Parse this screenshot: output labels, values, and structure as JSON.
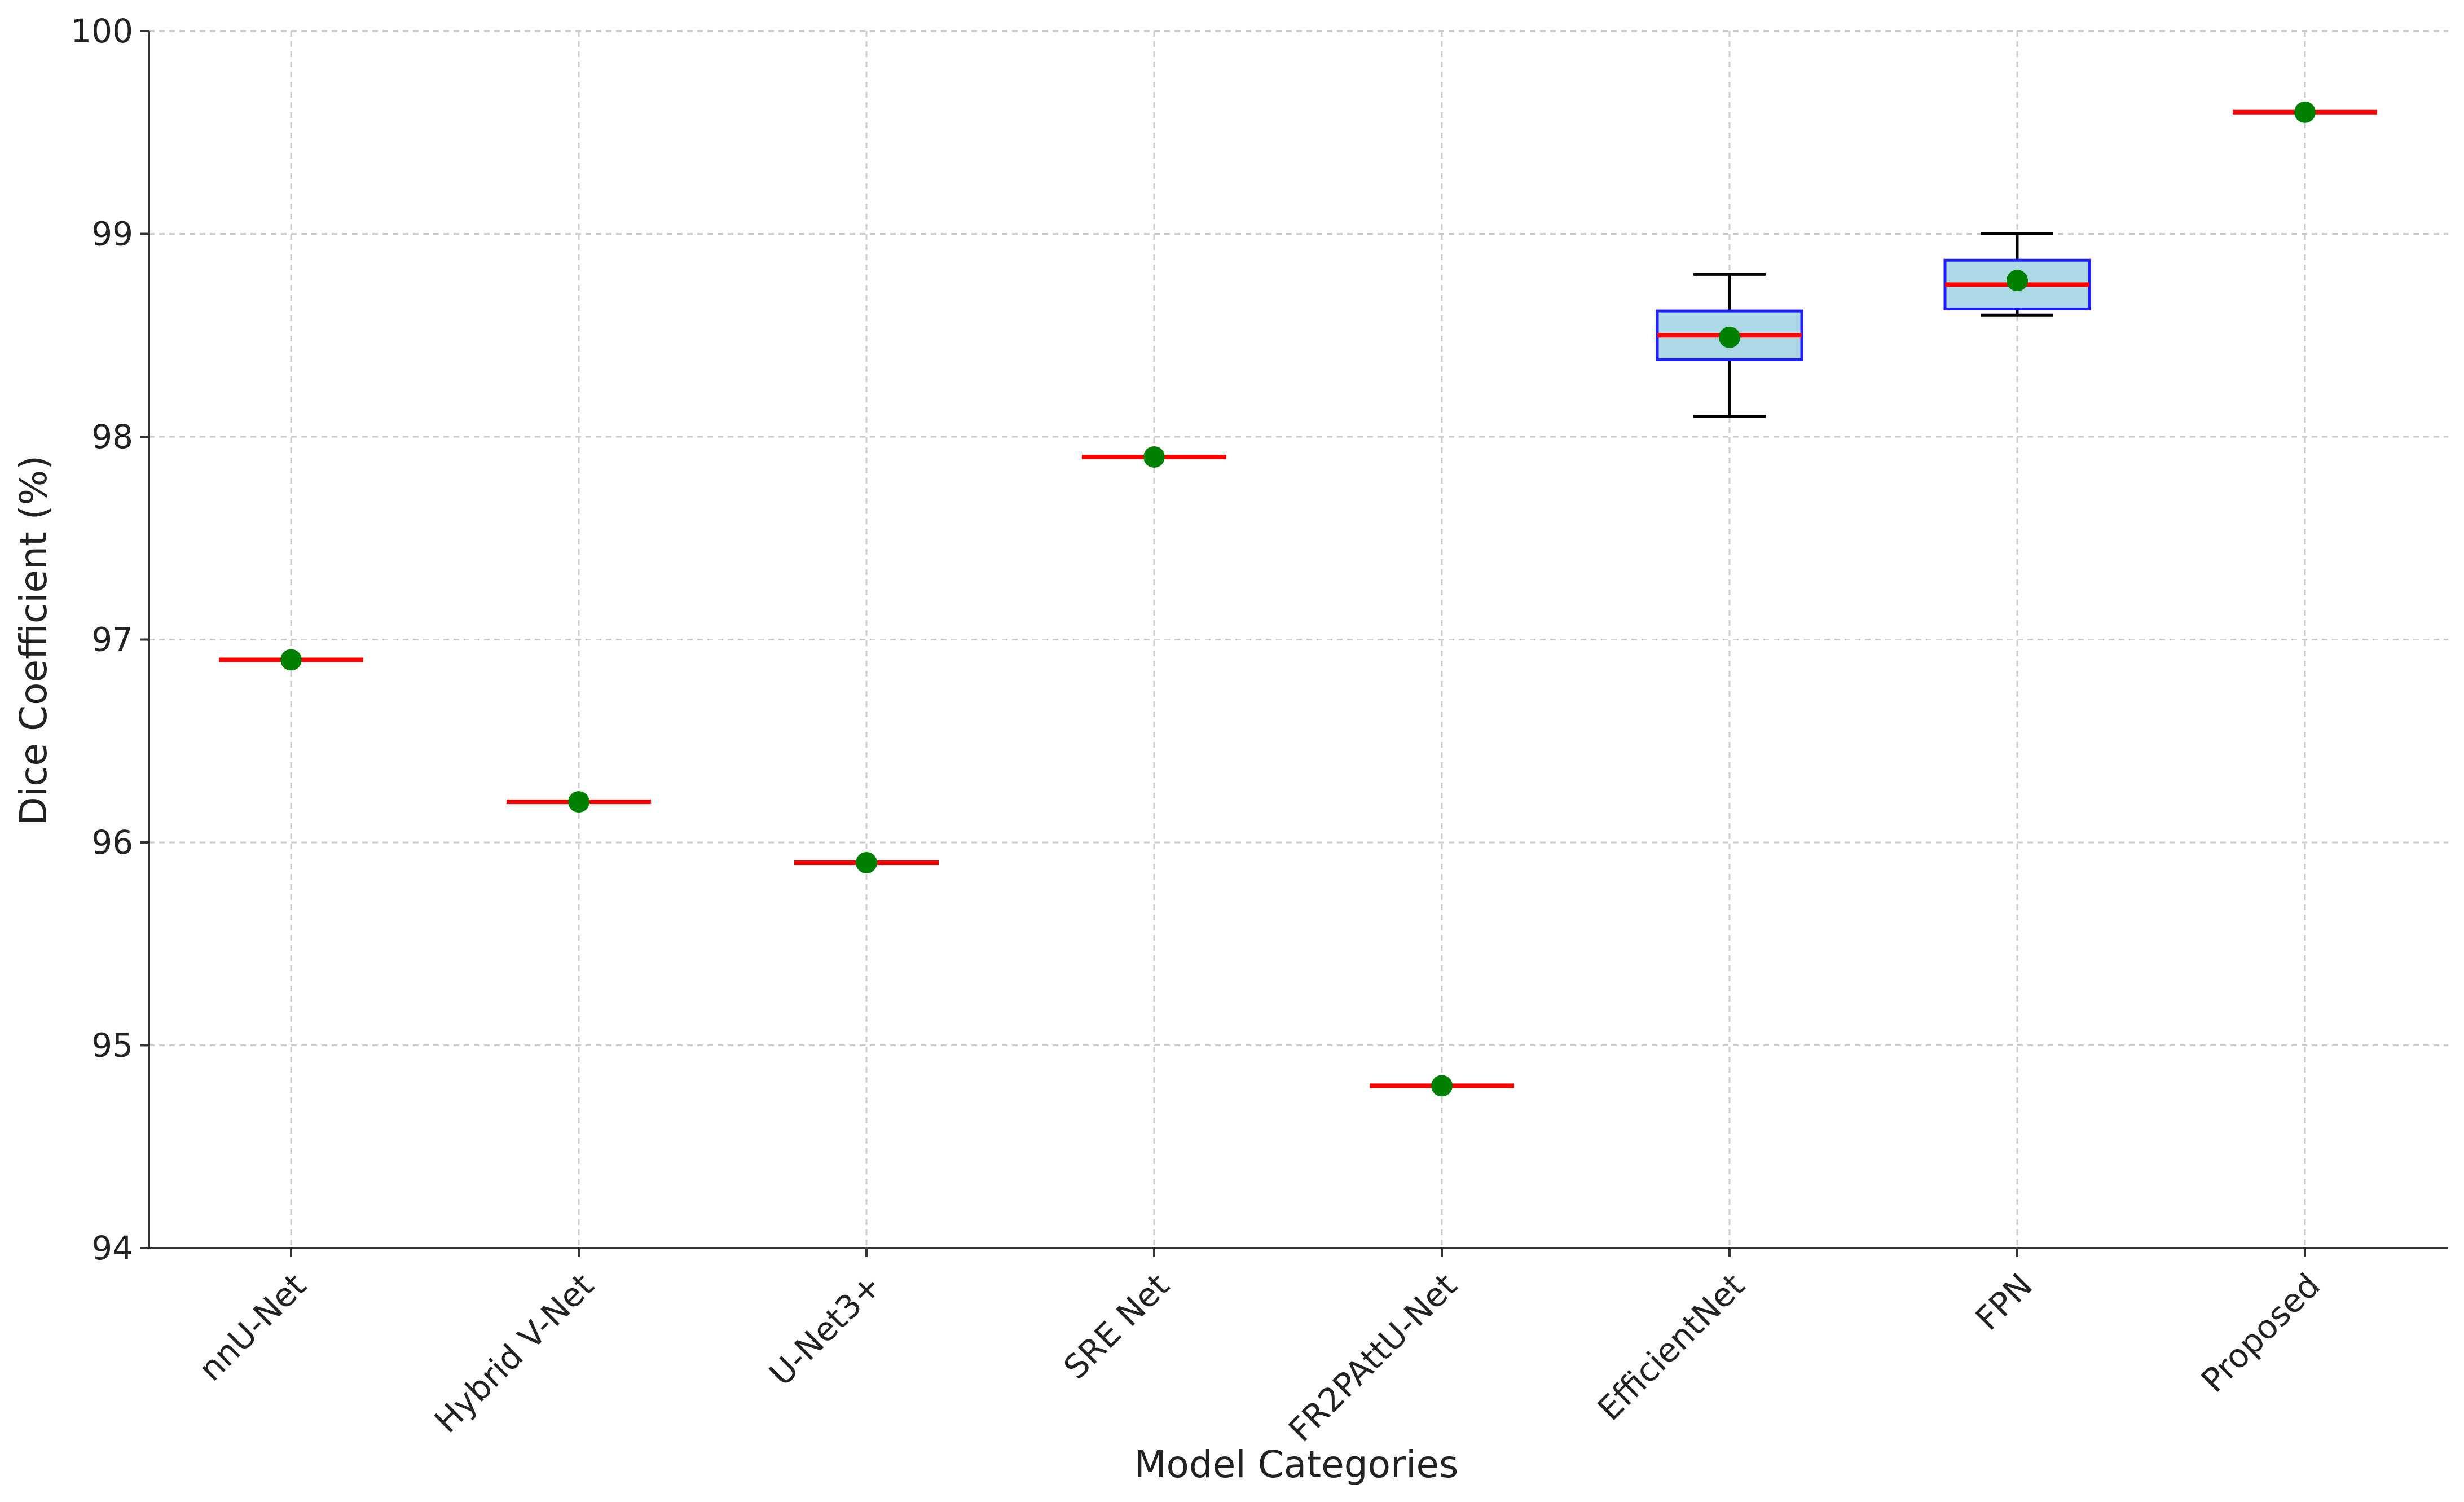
{
  "chart_data": {
    "type": "box",
    "title": "",
    "xlabel": "Model Categories",
    "ylabel": "Dice Coefficient (%)",
    "ylim": [
      94,
      100
    ],
    "yticks": [
      "94",
      "95",
      "96",
      "97",
      "98",
      "99",
      "100"
    ],
    "grid": true,
    "categories": [
      "nnU-Net",
      "Hybrid V-Net",
      "U-Net3+",
      "SRE Net",
      "FR2PAttU-Net",
      "EfficientNet",
      "FPN",
      "Proposed"
    ],
    "boxes": [
      {
        "min": 96.9,
        "q1": 96.9,
        "median": 96.9,
        "q3": 96.9,
        "max": 96.9,
        "mean": 96.9
      },
      {
        "min": 96.2,
        "q1": 96.2,
        "median": 96.2,
        "q3": 96.2,
        "max": 96.2,
        "mean": 96.2
      },
      {
        "min": 95.9,
        "q1": 95.9,
        "median": 95.9,
        "q3": 95.9,
        "max": 95.9,
        "mean": 95.9
      },
      {
        "min": 97.9,
        "q1": 97.9,
        "median": 97.9,
        "q3": 97.9,
        "max": 97.9,
        "mean": 97.9
      },
      {
        "min": 94.8,
        "q1": 94.8,
        "median": 94.8,
        "q3": 94.8,
        "max": 94.8,
        "mean": 94.8
      },
      {
        "min": 98.1,
        "q1": 98.38,
        "median": 98.5,
        "q3": 98.62,
        "max": 98.8,
        "mean": 98.49
      },
      {
        "min": 98.6,
        "q1": 98.63,
        "median": 98.75,
        "q3": 98.87,
        "max": 99.0,
        "mean": 98.77
      },
      {
        "min": 99.6,
        "q1": 99.6,
        "median": 99.6,
        "q3": 99.6,
        "max": 99.6,
        "mean": 99.6
      }
    ],
    "colors": {
      "box_fill": "#add8e6",
      "box_edge": "#1f1fff",
      "median": "#ff0000",
      "mean_marker": "#008000",
      "whisker": "#000000",
      "grid": "#cccccc",
      "axis": "#333333"
    }
  }
}
